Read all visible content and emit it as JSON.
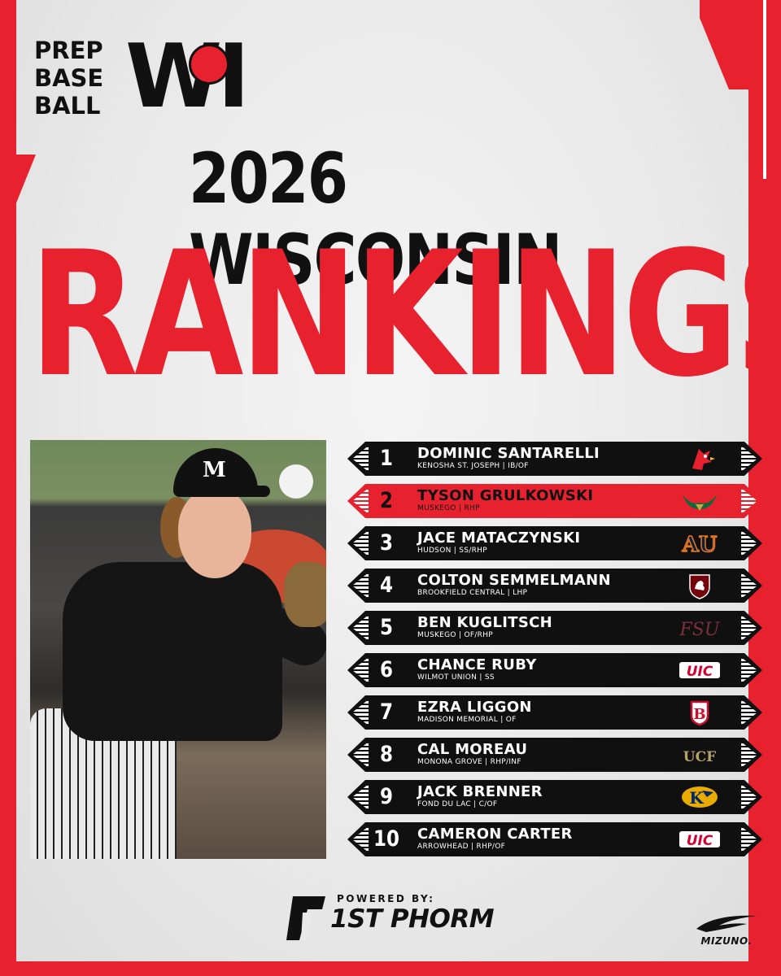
{
  "brand": {
    "logo_lines": [
      "PREP",
      "BASE",
      "BALL"
    ],
    "logo_state": "WI"
  },
  "title": {
    "line1": "2026 WISCONSIN",
    "line2": "RANKINGS"
  },
  "rankings": [
    {
      "rank": "1",
      "name": "DOMINIC SANTARELLI",
      "detail": "KENOSHA ST. JOSEPH | IB/OF",
      "school_logo": "cardinal-logo-icon",
      "highlight": false
    },
    {
      "rank": "2",
      "name": "TYSON GRULKOWSKI",
      "detail": "MUSKEGO | RHP",
      "school_logo": "bull-horns-logo-icon",
      "highlight": true
    },
    {
      "rank": "3",
      "name": "JACE MATACZYNSKI",
      "detail": "HUDSON | SS/RHP",
      "school_logo": "au-logo-icon",
      "highlight": false
    },
    {
      "rank": "4",
      "name": "COLTON SEMMELMANN",
      "detail": "BROOKFIELD CENTRAL | LHP",
      "school_logo": "gamecock-shield-logo-icon",
      "highlight": false
    },
    {
      "rank": "5",
      "name": "BEN KUGLITSCH",
      "detail": "MUSKEGO | OF/RHP",
      "school_logo": "fsu-logo-icon",
      "highlight": false
    },
    {
      "rank": "6",
      "name": "CHANCE RUBY",
      "detail": "WILMOT UNION | SS",
      "school_logo": "uic-logo-icon",
      "highlight": false
    },
    {
      "rank": "7",
      "name": "EZRA LIGGON",
      "detail": "MADISON MEMORIAL | OF",
      "school_logo": "b-shield-logo-icon",
      "highlight": false
    },
    {
      "rank": "8",
      "name": "CAL MOREAU",
      "detail": "MONONA GROVE | RHP/INF",
      "school_logo": "ucf-logo-icon",
      "highlight": false
    },
    {
      "rank": "9",
      "name": "JACK BRENNER",
      "detail": "FOND DU LAC | C/OF",
      "school_logo": "k-eagle-logo-icon",
      "highlight": false
    },
    {
      "rank": "10",
      "name": "CAMERON CARTER",
      "detail": "ARROWHEAD | RHP/OF",
      "school_logo": "uic-logo-icon",
      "highlight": false
    }
  ],
  "logo_text": {
    "au": "AU",
    "fsu": "FSU",
    "uic": "UIC",
    "b": "B",
    "ucf": "UCF",
    "k": "K"
  },
  "sponsor": {
    "powered_by": "POWERED BY:",
    "name": "1ST PHORM",
    "secondary": "MIZUNO."
  },
  "photo": {
    "cap_letter": "M"
  },
  "colors": {
    "accent": "#e8212e",
    "row_dark": "#101010",
    "background": "#e9e9e9"
  }
}
